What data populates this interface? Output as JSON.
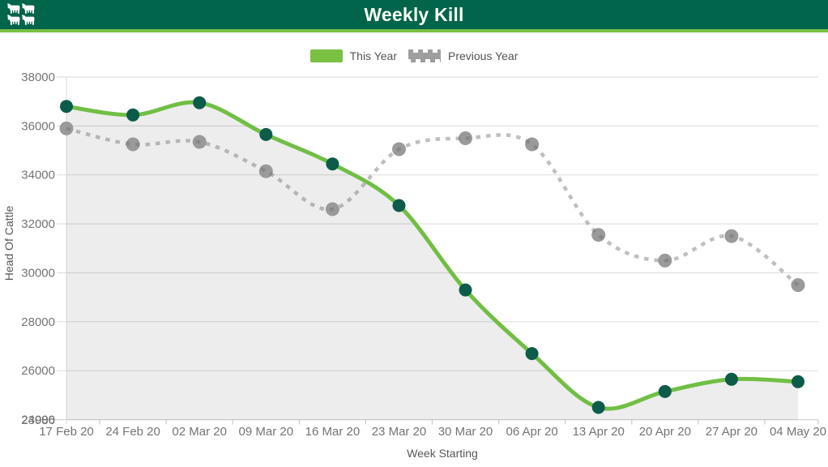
{
  "header": {
    "title": "Weekly Kill",
    "logo_icon": "cattle-herd-icon"
  },
  "theme": {
    "header_bg": "#00654a",
    "accent_green": "#7ac143",
    "line_green": "#70bf44",
    "point_green": "#0d5c49",
    "legend_gray": "#9e9e9e",
    "grid_color": "#e0e0e0",
    "axis_line_color": "#d4d4d4",
    "tick_text_color": "#747474",
    "label_text_color": "#575757",
    "legend_text_color": "#545454"
  },
  "legend": {
    "this_year_label": "This Year",
    "previous_year_label": "Previous Year"
  },
  "chart_data": {
    "type": "line",
    "title": "Weekly Kill",
    "curve": "smooth",
    "grid": "horizontal",
    "legend_position": "top",
    "xlabel": "Week Starting",
    "ylabel": "Head Of Cattle",
    "x_categories": [
      "17 Feb 20",
      "24 Feb 20",
      "02 Mar 20",
      "09 Mar 20",
      "16 Mar 20",
      "23 Mar 20",
      "30 Mar 20",
      "06 Apr 20",
      "13 Apr 20",
      "20 Apr 20",
      "27 Apr 20",
      "04 May 20"
    ],
    "series": [
      {
        "name": "This Year",
        "style": "solid",
        "line_color": "#70bf44",
        "point_color": "#0d5c49",
        "area_fill": "rgba(0,0,0,0.07)",
        "values": [
          36800,
          36450,
          36950,
          35650,
          34450,
          32750,
          29300,
          26700,
          24500,
          25150,
          25650,
          25550
        ]
      },
      {
        "name": "Previous Year",
        "style": "dashed",
        "line_color": "#6f7472",
        "line_opacity": 0.45,
        "point_color": "#9a9a9a",
        "values": [
          35900,
          35250,
          35350,
          34150,
          32600,
          35050,
          35500,
          35250,
          31550,
          30500,
          31500,
          29500
        ]
      }
    ],
    "y_ticks": [
      38000,
      36000,
      34000,
      32000,
      30000,
      28000,
      26000,
      24000
    ],
    "y_axis_min_label": "23986",
    "ylim": [
      23986,
      38000
    ]
  }
}
